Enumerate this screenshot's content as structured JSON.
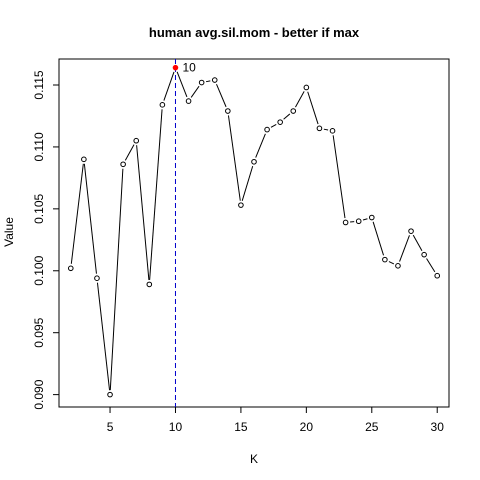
{
  "chart_data": {
    "type": "line",
    "title": "human avg.sil.mom - better if  max",
    "xlabel": "K",
    "ylabel": "Value",
    "x": [
      2,
      3,
      4,
      5,
      6,
      7,
      8,
      9,
      10,
      11,
      12,
      13,
      14,
      15,
      16,
      17,
      18,
      19,
      20,
      21,
      22,
      23,
      24,
      25,
      26,
      27,
      28,
      29,
      30
    ],
    "values": [
      0.1002,
      0.109,
      0.0994,
      0.09,
      0.1086,
      0.1105,
      0.0989,
      0.1134,
      0.1164,
      0.1137,
      0.1152,
      0.1154,
      0.1129,
      0.1053,
      0.1088,
      0.1114,
      0.112,
      0.1129,
      0.1148,
      0.1115,
      0.1113,
      0.1039,
      0.104,
      0.1043,
      0.1009,
      0.1004,
      0.1032,
      0.1013,
      0.0996
    ],
    "xlim": [
      1.1,
      30.9
    ],
    "ylim": [
      0.089,
      0.1171
    ],
    "xticks": [
      5,
      10,
      15,
      20,
      25,
      30
    ],
    "yticks": [
      "0.090",
      "0.095",
      "0.100",
      "0.105",
      "0.110",
      "0.115"
    ],
    "highlight": {
      "x": 10,
      "y": 0.1164,
      "label": "10",
      "color": "#ff0000"
    },
    "vline": {
      "x": 10,
      "color": "#0000cc"
    },
    "grid": false
  }
}
